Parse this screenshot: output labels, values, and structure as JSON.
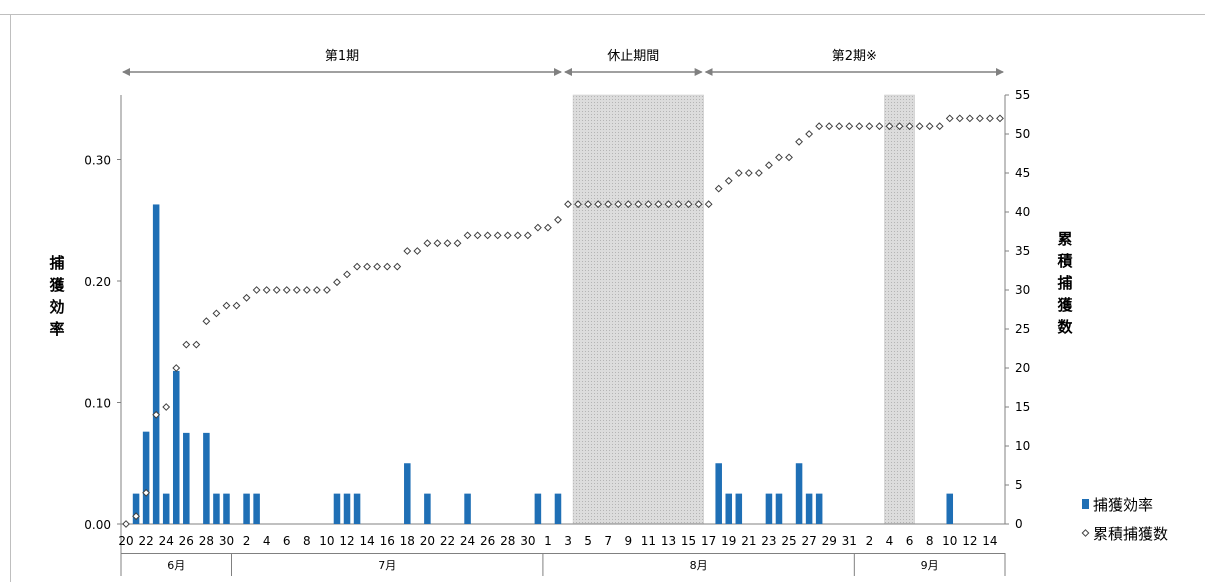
{
  "chart_data": {
    "type": "bar+scatter",
    "periods": [
      {
        "label": "第1期",
        "start_day": 0,
        "end_day": 44
      },
      {
        "label": "休止期間",
        "start_day": 44,
        "end_day": 58
      },
      {
        "label": "第2期※",
        "start_day": 58,
        "end_day": 88
      }
    ],
    "shaded_ranges": [
      {
        "start_day": 44.5,
        "end_day": 57.5
      },
      {
        "start_day": 75.5,
        "end_day": 78.5
      }
    ],
    "x_ticks": [
      "20",
      "22",
      "24",
      "26",
      "28",
      "30",
      "2",
      "4",
      "6",
      "8",
      "10",
      "12",
      "14",
      "16",
      "18",
      "20",
      "22",
      "24",
      "26",
      "28",
      "30",
      "1",
      "3",
      "5",
      "7",
      "9",
      "11",
      "13",
      "15",
      "17",
      "19",
      "21",
      "23",
      "25",
      "27",
      "29",
      "31",
      "2",
      "4",
      "6",
      "8",
      "10",
      "12",
      "14"
    ],
    "months": [
      {
        "label": "6月",
        "start_day": 0,
        "end_day": 11
      },
      {
        "label": "7月",
        "start_day": 11,
        "end_day": 42
      },
      {
        "label": "8月",
        "start_day": 42,
        "end_day": 73
      },
      {
        "label": "9月",
        "start_day": 73,
        "end_day": 88
      }
    ],
    "y_left": {
      "label": "捕獲効率",
      "min": 0,
      "max": 0.3,
      "ticks": [
        "0.00",
        "0.10",
        "0.20",
        "0.30"
      ]
    },
    "y_right": {
      "label": "累積捕獲数",
      "min": 0,
      "max": 55,
      "ticks": [
        "0",
        "5",
        "10",
        "15",
        "20",
        "25",
        "30",
        "35",
        "40",
        "45",
        "50",
        "55"
      ]
    },
    "series": [
      {
        "name": "捕獲効率",
        "type": "bar",
        "color": "#1f6fb5",
        "points": [
          {
            "day": 1,
            "value": 0.025
          },
          {
            "day": 2,
            "value": 0.076
          },
          {
            "day": 3,
            "value": 0.263
          },
          {
            "day": 4,
            "value": 0.025
          },
          {
            "day": 5,
            "value": 0.126
          },
          {
            "day": 6,
            "value": 0.075
          },
          {
            "day": 8,
            "value": 0.075
          },
          {
            "day": 9,
            "value": 0.025
          },
          {
            "day": 10,
            "value": 0.025
          },
          {
            "day": 12,
            "value": 0.025
          },
          {
            "day": 13,
            "value": 0.025
          },
          {
            "day": 21,
            "value": 0.025
          },
          {
            "day": 22,
            "value": 0.025
          },
          {
            "day": 23,
            "value": 0.025
          },
          {
            "day": 28,
            "value": 0.05
          },
          {
            "day": 30,
            "value": 0.025
          },
          {
            "day": 34,
            "value": 0.025
          },
          {
            "day": 41,
            "value": 0.025
          },
          {
            "day": 43,
            "value": 0.025
          },
          {
            "day": 59,
            "value": 0.05
          },
          {
            "day": 60,
            "value": 0.025
          },
          {
            "day": 61,
            "value": 0.025
          },
          {
            "day": 64,
            "value": 0.025
          },
          {
            "day": 65,
            "value": 0.025
          },
          {
            "day": 67,
            "value": 0.05
          },
          {
            "day": 68,
            "value": 0.025
          },
          {
            "day": 69,
            "value": 0.025
          },
          {
            "day": 82,
            "value": 0.025
          }
        ]
      },
      {
        "name": "累積捕獲数",
        "type": "scatter",
        "marker": "diamond",
        "points": [
          {
            "day": 0,
            "value": 0
          },
          {
            "day": 1,
            "value": 1
          },
          {
            "day": 2,
            "value": 4
          },
          {
            "day": 3,
            "value": 14
          },
          {
            "day": 4,
            "value": 15
          },
          {
            "day": 5,
            "value": 20
          },
          {
            "day": 6,
            "value": 23
          },
          {
            "day": 7,
            "value": 23
          },
          {
            "day": 8,
            "value": 26
          },
          {
            "day": 9,
            "value": 27
          },
          {
            "day": 10,
            "value": 28
          },
          {
            "day": 11,
            "value": 28
          },
          {
            "day": 12,
            "value": 29
          },
          {
            "day": 13,
            "value": 30
          },
          {
            "day": 14,
            "value": 30
          },
          {
            "day": 15,
            "value": 30
          },
          {
            "day": 16,
            "value": 30
          },
          {
            "day": 17,
            "value": 30
          },
          {
            "day": 18,
            "value": 30
          },
          {
            "day": 19,
            "value": 30
          },
          {
            "day": 20,
            "value": 30
          },
          {
            "day": 21,
            "value": 31
          },
          {
            "day": 22,
            "value": 32
          },
          {
            "day": 23,
            "value": 33
          },
          {
            "day": 24,
            "value": 33
          },
          {
            "day": 25,
            "value": 33
          },
          {
            "day": 26,
            "value": 33
          },
          {
            "day": 27,
            "value": 33
          },
          {
            "day": 28,
            "value": 35
          },
          {
            "day": 29,
            "value": 35
          },
          {
            "day": 30,
            "value": 36
          },
          {
            "day": 31,
            "value": 36
          },
          {
            "day": 32,
            "value": 36
          },
          {
            "day": 33,
            "value": 36
          },
          {
            "day": 34,
            "value": 37
          },
          {
            "day": 35,
            "value": 37
          },
          {
            "day": 36,
            "value": 37
          },
          {
            "day": 37,
            "value": 37
          },
          {
            "day": 38,
            "value": 37
          },
          {
            "day": 39,
            "value": 37
          },
          {
            "day": 40,
            "value": 37
          },
          {
            "day": 41,
            "value": 38
          },
          {
            "day": 42,
            "value": 38
          },
          {
            "day": 43,
            "value": 39
          },
          {
            "day": 44,
            "value": 41
          },
          {
            "day": 45,
            "value": 41
          },
          {
            "day": 46,
            "value": 41
          },
          {
            "day": 47,
            "value": 41
          },
          {
            "day": 48,
            "value": 41
          },
          {
            "day": 49,
            "value": 41
          },
          {
            "day": 50,
            "value": 41
          },
          {
            "day": 51,
            "value": 41
          },
          {
            "day": 52,
            "value": 41
          },
          {
            "day": 53,
            "value": 41
          },
          {
            "day": 54,
            "value": 41
          },
          {
            "day": 55,
            "value": 41
          },
          {
            "day": 56,
            "value": 41
          },
          {
            "day": 57,
            "value": 41
          },
          {
            "day": 58,
            "value": 41
          },
          {
            "day": 59,
            "value": 43
          },
          {
            "day": 60,
            "value": 44
          },
          {
            "day": 61,
            "value": 45
          },
          {
            "day": 62,
            "value": 45
          },
          {
            "day": 63,
            "value": 45
          },
          {
            "day": 64,
            "value": 46
          },
          {
            "day": 65,
            "value": 47
          },
          {
            "day": 66,
            "value": 47
          },
          {
            "day": 67,
            "value": 49
          },
          {
            "day": 68,
            "value": 50
          },
          {
            "day": 69,
            "value": 51
          },
          {
            "day": 70,
            "value": 51
          },
          {
            "day": 71,
            "value": 51
          },
          {
            "day": 72,
            "value": 51
          },
          {
            "day": 73,
            "value": 51
          },
          {
            "day": 74,
            "value": 51
          },
          {
            "day": 75,
            "value": 51
          },
          {
            "day": 76,
            "value": 51
          },
          {
            "day": 77,
            "value": 51
          },
          {
            "day": 78,
            "value": 51
          },
          {
            "day": 79,
            "value": 51
          },
          {
            "day": 80,
            "value": 51
          },
          {
            "day": 81,
            "value": 51
          },
          {
            "day": 82,
            "value": 52
          },
          {
            "day": 83,
            "value": 52
          },
          {
            "day": 84,
            "value": 52
          },
          {
            "day": 85,
            "value": 52
          },
          {
            "day": 86,
            "value": 52
          },
          {
            "day": 87,
            "value": 52
          }
        ]
      }
    ],
    "legend": {
      "position": "right-bottom"
    }
  }
}
